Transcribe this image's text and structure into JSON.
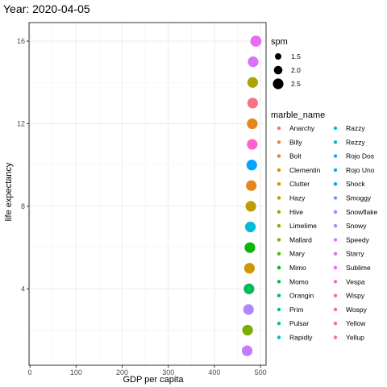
{
  "chart_data": {
    "type": "scatter",
    "title": "Year: 2020-04-05",
    "xlabel": "GDP per capita",
    "ylabel": "life expectancy",
    "xlim": [
      -2,
      512
    ],
    "ylim": [
      0.3,
      16.9
    ],
    "xticks": [
      0,
      100,
      200,
      300,
      400,
      500
    ],
    "yticks": [
      4,
      8,
      12,
      16
    ],
    "grid": true,
    "size_legend": {
      "title": "spm",
      "values": [
        1.5,
        2.0,
        2.5
      ],
      "labels": [
        "1.5",
        "2.0",
        "2.5"
      ]
    },
    "color_legend": {
      "title": "marble_name",
      "columns": 2,
      "entries": [
        {
          "name": "Anarchy",
          "color": "#F8766D"
        },
        {
          "name": "Billy",
          "color": "#F17E4E"
        },
        {
          "name": "Bolt",
          "color": "#E7861B"
        },
        {
          "name": "Clementin",
          "color": "#DB8E00"
        },
        {
          "name": "Clutter",
          "color": "#CE9600"
        },
        {
          "name": "Hazy",
          "color": "#BE9C00"
        },
        {
          "name": "Hive",
          "color": "#ACA300"
        },
        {
          "name": "Limelime",
          "color": "#97A900"
        },
        {
          "name": "Mallard",
          "color": "#7CAE00"
        },
        {
          "name": "Mary",
          "color": "#5BB300"
        },
        {
          "name": "Mimo",
          "color": "#0BB702"
        },
        {
          "name": "Momo",
          "color": "#00BA38"
        },
        {
          "name": "Orangin",
          "color": "#00BD5C"
        },
        {
          "name": "Prim",
          "color": "#00BF7D"
        },
        {
          "name": "Pulsar",
          "color": "#00C19B"
        },
        {
          "name": "Rapidly",
          "color": "#00C1B2"
        },
        {
          "name": "Razzy",
          "color": "#00BFC4"
        },
        {
          "name": "Rezzy",
          "color": "#00BCD8"
        },
        {
          "name": "Rojo Dos",
          "color": "#00B8E7"
        },
        {
          "name": "Rojo Uno",
          "color": "#00B0F6"
        },
        {
          "name": "Shock",
          "color": "#00A5FF"
        },
        {
          "name": "Smoggy",
          "color": "#619CFF"
        },
        {
          "name": "Snowflake",
          "color": "#8E92FF"
        },
        {
          "name": "Snowy",
          "color": "#AC88FF"
        },
        {
          "name": "Speedy",
          "color": "#C77CFF"
        },
        {
          "name": "Starry",
          "color": "#DA72F7"
        },
        {
          "name": "Sublime",
          "color": "#E76BF3"
        },
        {
          "name": "Vespa",
          "color": "#F564E3"
        },
        {
          "name": "Wispy",
          "color": "#FF61CC"
        },
        {
          "name": "Wospy",
          "color": "#FF64B0"
        },
        {
          "name": "Yellow",
          "color": "#FF6C91"
        },
        {
          "name": "Yellup",
          "color": "#FC717F"
        }
      ]
    },
    "points": [
      {
        "x": 490,
        "y": 16,
        "spm": 2.6,
        "color": "#E76BF3"
      },
      {
        "x": 484,
        "y": 15,
        "spm": 2.5,
        "color": "#DA72F7"
      },
      {
        "x": 483,
        "y": 14,
        "spm": 2.5,
        "color": "#ACA300"
      },
      {
        "x": 483,
        "y": 13,
        "spm": 2.5,
        "color": "#FC717F"
      },
      {
        "x": 482,
        "y": 12,
        "spm": 2.5,
        "color": "#E7861B"
      },
      {
        "x": 482,
        "y": 11,
        "spm": 2.5,
        "color": "#FF61CC"
      },
      {
        "x": 481,
        "y": 10,
        "spm": 2.5,
        "color": "#00A5FF"
      },
      {
        "x": 480,
        "y": 9,
        "spm": 2.5,
        "color": "#E7861B"
      },
      {
        "x": 479,
        "y": 8,
        "spm": 2.5,
        "color": "#BE9C00"
      },
      {
        "x": 478,
        "y": 7,
        "spm": 2.5,
        "color": "#00BCD8"
      },
      {
        "x": 477,
        "y": 6,
        "spm": 2.5,
        "color": "#0BB702"
      },
      {
        "x": 476,
        "y": 5,
        "spm": 2.5,
        "color": "#CE9600"
      },
      {
        "x": 475,
        "y": 4,
        "spm": 2.5,
        "color": "#00BD5C"
      },
      {
        "x": 474,
        "y": 3,
        "spm": 2.5,
        "color": "#AC88FF"
      },
      {
        "x": 472,
        "y": 2,
        "spm": 2.5,
        "color": "#7CAE00"
      },
      {
        "x": 471,
        "y": 1,
        "spm": 2.5,
        "color": "#C77CFF"
      }
    ]
  }
}
